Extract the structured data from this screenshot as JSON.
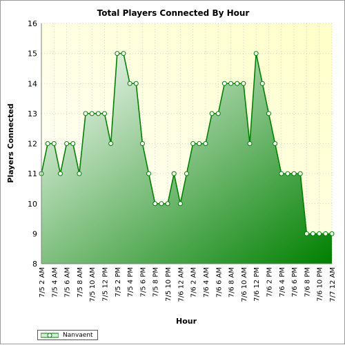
{
  "chart_data": {
    "type": "area",
    "title": "Total Players Connected By Hour",
    "xlabel": "Hour",
    "ylabel": "Players Connected",
    "ylim": [
      8,
      16
    ],
    "yticks": [
      8,
      9,
      10,
      11,
      12,
      13,
      14,
      15,
      16
    ],
    "grid": true,
    "legend_position": "bottom-left",
    "series": [
      {
        "name": "Nanvaent",
        "color": "#008000",
        "values": [
          11,
          12,
          12,
          11,
          12,
          12,
          11,
          13,
          13,
          13,
          13,
          12,
          15,
          15,
          14,
          14,
          12,
          11,
          10,
          10,
          10,
          11,
          10,
          11,
          12,
          12,
          12,
          13,
          13,
          14,
          14,
          14,
          14,
          12,
          15,
          14,
          13,
          12,
          11,
          11,
          11,
          11,
          9,
          9,
          9,
          9,
          9
        ]
      }
    ],
    "tick_labels": [
      "7/5 2 AM",
      "7/5 4 AM",
      "7/5 6 AM",
      "7/5 8 AM",
      "7/5 10 AM",
      "7/5 12 PM",
      "7/5 2 PM",
      "7/5 4 PM",
      "7/5 6 PM",
      "7/5 8 PM",
      "7/5 10 PM",
      "7/6 12 AM",
      "7/6 2 AM",
      "7/6 4 AM",
      "7/6 6 AM",
      "7/6 8 AM",
      "7/6 10 AM",
      "7/6 12 PM",
      "7/6 2 PM",
      "7/6 4 PM",
      "7/6 6 PM",
      "7/6 8 PM",
      "7/6 10 PM",
      "7/7 12 AM"
    ]
  }
}
